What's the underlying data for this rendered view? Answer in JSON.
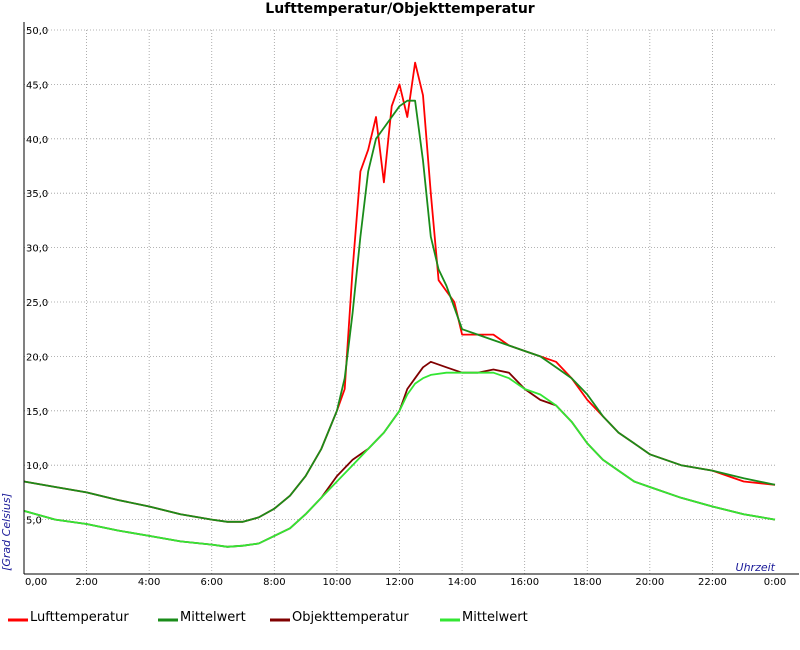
{
  "chart_data": {
    "type": "line",
    "title": "Lufttemperatur/Objekttemperatur",
    "xlabel": "Uhrzeit",
    "ylabel": "[Grad Celsius]",
    "xlim": [
      0,
      24
    ],
    "ylim": [
      0,
      50
    ],
    "grid": true,
    "legend_position": "bottom",
    "x_ticks": [
      "0,00",
      "2:00",
      "4:00",
      "6:00",
      "8:00",
      "10:00",
      "12:00",
      "14:00",
      "16:00",
      "18:00",
      "20:00",
      "22:00",
      "0:00"
    ],
    "y_ticks": [
      "5,0",
      "10,0",
      "15,0",
      "20,0",
      "25,0",
      "30,0",
      "35,0",
      "40,0",
      "45,0",
      "50,0"
    ],
    "series": [
      {
        "name": "Lufttemperatur",
        "color": "#ff0000",
        "x": [
          0,
          1,
          2,
          3,
          4,
          5,
          6,
          6.5,
          7,
          7.5,
          8,
          8.5,
          9,
          9.5,
          10,
          10.25,
          10.5,
          10.75,
          11,
          11.25,
          11.5,
          11.75,
          12,
          12.25,
          12.5,
          12.75,
          13,
          13.25,
          13.5,
          13.75,
          14,
          14.5,
          15,
          15.5,
          16,
          16.5,
          17,
          17.5,
          18,
          18.5,
          19,
          19.5,
          20,
          21,
          22,
          23,
          24
        ],
        "y": [
          8.5,
          8,
          7.5,
          6.8,
          6.2,
          5.5,
          5,
          4.8,
          4.8,
          5.2,
          6,
          7.2,
          9,
          11.5,
          15,
          17,
          28,
          37,
          39,
          42,
          36,
          43,
          45,
          42,
          47,
          44,
          35,
          27,
          26,
          25,
          22,
          22,
          22,
          21,
          20.5,
          20,
          19.5,
          18,
          16,
          14.5,
          13,
          12,
          11,
          10,
          9.5,
          8.5,
          8.2
        ]
      },
      {
        "name": "Mittelwert",
        "color": "#1a8c1a",
        "x": [
          0,
          1,
          2,
          3,
          4,
          5,
          6,
          6.5,
          7,
          7.5,
          8,
          8.5,
          9,
          9.5,
          10,
          10.25,
          10.5,
          10.75,
          11,
          11.25,
          11.5,
          11.75,
          12,
          12.25,
          12.5,
          12.75,
          13,
          13.25,
          13.5,
          13.75,
          14,
          14.5,
          15,
          15.5,
          16,
          16.5,
          17,
          17.5,
          18,
          18.5,
          19,
          19.5,
          20,
          21,
          22,
          23,
          24
        ],
        "y": [
          8.5,
          8,
          7.5,
          6.8,
          6.2,
          5.5,
          5,
          4.8,
          4.8,
          5.2,
          6,
          7.2,
          9,
          11.5,
          15,
          18,
          24,
          31,
          37,
          40,
          41,
          42,
          43,
          43.5,
          43.5,
          38,
          31,
          28,
          26.5,
          24.5,
          22.5,
          22,
          21.5,
          21,
          20.5,
          20,
          19,
          18,
          16.5,
          14.5,
          13,
          12,
          11,
          10,
          9.5,
          8.8,
          8.2
        ]
      },
      {
        "name": "Objekttemperatur",
        "color": "#800000",
        "x": [
          0,
          1,
          2,
          3,
          4,
          5,
          6,
          6.5,
          7,
          7.5,
          8,
          8.5,
          9,
          9.5,
          10,
          10.5,
          11,
          11.5,
          12,
          12.25,
          12.5,
          12.75,
          13,
          13.5,
          14,
          14.5,
          15,
          15.5,
          16,
          16.5,
          17,
          17.5,
          18,
          18.5,
          19,
          19.5,
          20,
          21,
          22,
          23,
          24
        ],
        "y": [
          5.8,
          5,
          4.6,
          4,
          3.5,
          3,
          2.7,
          2.5,
          2.6,
          2.8,
          3.5,
          4.2,
          5.5,
          7,
          9,
          10.5,
          11.5,
          13,
          15,
          17,
          18,
          19,
          19.5,
          19,
          18.5,
          18.5,
          18.8,
          18.5,
          17,
          16,
          15.5,
          14,
          12,
          10.5,
          9.5,
          8.5,
          8,
          7,
          6.2,
          5.5,
          5
        ]
      },
      {
        "name": "Mittelwert",
        "color": "#33e633",
        "x": [
          0,
          1,
          2,
          3,
          4,
          5,
          6,
          6.5,
          7,
          7.5,
          8,
          8.5,
          9,
          9.5,
          10,
          10.5,
          11,
          11.5,
          12,
          12.25,
          12.5,
          12.75,
          13,
          13.5,
          14,
          14.5,
          15,
          15.5,
          16,
          16.5,
          17,
          17.5,
          18,
          18.5,
          19,
          19.5,
          20,
          21,
          22,
          23,
          24
        ],
        "y": [
          5.8,
          5,
          4.6,
          4,
          3.5,
          3,
          2.7,
          2.5,
          2.6,
          2.8,
          3.5,
          4.2,
          5.5,
          7,
          8.5,
          10,
          11.5,
          13,
          15,
          16.5,
          17.5,
          18,
          18.3,
          18.5,
          18.5,
          18.5,
          18.5,
          18,
          17,
          16.5,
          15.5,
          14,
          12,
          10.5,
          9.5,
          8.5,
          8,
          7,
          6.2,
          5.5,
          5
        ]
      }
    ]
  }
}
